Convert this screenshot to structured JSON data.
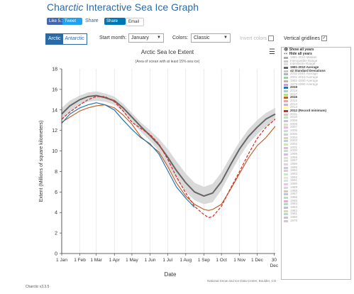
{
  "header": {
    "title_prefix": "Char",
    "title_em": "ctic",
    "title_rest": " Interactive Sea Ice Graph",
    "fb_label": "Like 5.1K",
    "tweet_label": "Tweet",
    "share_label": "Share",
    "li_share_label": "Share",
    "email_label": "Email"
  },
  "controls": {
    "tab_arctic": "Arctic",
    "tab_antarctic": "Antarctic",
    "start_month_label": "Start month",
    "start_month_value": "January",
    "colors_label": "Colors",
    "colors_value": "Classic",
    "invert_colors_label": "Invert colors",
    "vertical_gridlines_label": "Vertical gridlines",
    "vertical_gridlines_checked": "✓"
  },
  "legend": {
    "show_all": "Show all years",
    "hide_all": "Hide all years",
    "entries": [
      {
        "label": "1981-2010 Median",
        "color": "#aaaaaa",
        "light": true
      },
      {
        "label": "Interquartile Range",
        "color": "#cccccc",
        "light": true
      },
      {
        "label": "Interdecile Range",
        "color": "#dddddd",
        "light": true
      },
      {
        "label": "1981-2010 Average",
        "color": "#666666",
        "bold": true
      },
      {
        "label": "±2 Standard Deviations",
        "color": "#c8c8c8",
        "bold": true
      },
      {
        "label": "2011-2040 Average",
        "color": "#9fb9cf",
        "light": true
      },
      {
        "label": "2001-2010 Average",
        "color": "#9fcf9f",
        "light": true
      },
      {
        "label": "1991-2000 Average",
        "color": "#cfb09f",
        "light": true
      },
      {
        "label": "1979-1990 Average",
        "color": "#cf9fcf",
        "light": true
      },
      {
        "label": "2019",
        "color": "#1f78b4",
        "bold": true
      },
      {
        "label": "2018",
        "color": "#a6cee3",
        "light": true
      },
      {
        "label": "2017",
        "color": "#b2df8a",
        "light": true
      },
      {
        "label": "2016",
        "color": "#c0642b",
        "bold": true
      },
      {
        "label": "2015",
        "color": "#fb9a99",
        "light": true
      },
      {
        "label": "2014",
        "color": "#cab2d6",
        "light": true
      },
      {
        "label": "2013",
        "color": "#ffff99",
        "light": true
      },
      {
        "label": "2012 (Record minimum)",
        "color": "#d62728",
        "bold": true
      },
      {
        "label": "2011",
        "color": "#e0c0c0",
        "light": true
      },
      {
        "label": "2010",
        "color": "#c0e0c0",
        "light": true
      },
      {
        "label": "2009",
        "color": "#c0c0e0",
        "light": true
      },
      {
        "label": "2008",
        "color": "#e0e0c0",
        "light": true
      },
      {
        "label": "2007",
        "color": "#e0c0e0",
        "light": true
      },
      {
        "label": "2006",
        "color": "#c0e0e0",
        "light": true
      },
      {
        "label": "2005",
        "color": "#d0d0d0",
        "light": true
      },
      {
        "label": "2004",
        "color": "#e0d0c0",
        "light": true
      },
      {
        "label": "2003",
        "color": "#c0d0e0",
        "light": true
      },
      {
        "label": "2002",
        "color": "#d0e0c0",
        "light": true
      },
      {
        "label": "2001",
        "color": "#e0c0d0",
        "light": true
      },
      {
        "label": "2000",
        "color": "#c0e0d0",
        "light": true
      },
      {
        "label": "1999",
        "color": "#d0c0e0",
        "light": true
      },
      {
        "label": "1998",
        "color": "#e0e0d0",
        "light": true
      },
      {
        "label": "1997",
        "color": "#d0e0e0",
        "light": true
      },
      {
        "label": "1996",
        "color": "#e0d0e0",
        "light": true
      },
      {
        "label": "1995",
        "color": "#c8c8e8",
        "light": true
      },
      {
        "label": "1994",
        "color": "#e8c8c8",
        "light": true
      },
      {
        "label": "1993",
        "color": "#c8e8c8",
        "light": true
      },
      {
        "label": "1992",
        "color": "#e8e8c8",
        "light": true
      },
      {
        "label": "1991",
        "color": "#c8e8e8",
        "light": true
      },
      {
        "label": "1990",
        "color": "#e8c8e8",
        "light": true
      },
      {
        "label": "1989",
        "color": "#d8d8d8",
        "light": true
      },
      {
        "label": "1988",
        "color": "#d8c8b8",
        "light": true
      },
      {
        "label": "1987",
        "color": "#b8c8d8",
        "light": true
      },
      {
        "label": "1986",
        "color": "#c8d8b8",
        "light": true
      },
      {
        "label": "1985",
        "color": "#d8b8c8",
        "light": true
      },
      {
        "label": "1984",
        "color": "#b8d8c8",
        "light": true
      },
      {
        "label": "1983",
        "color": "#c8b8d8",
        "light": true
      },
      {
        "label": "1982",
        "color": "#d8d8b8",
        "light": true
      },
      {
        "label": "1981",
        "color": "#b8d8d8",
        "light": true
      },
      {
        "label": "1980",
        "color": "#d8b8d8",
        "light": true
      },
      {
        "label": "1979",
        "color": "#cccccc",
        "light": true
      }
    ]
  },
  "chart_data": {
    "type": "line",
    "title": "Arctic Sea Ice Extent",
    "subtitle": "(Area of ocean with at least 15% sea ice)",
    "xlabel": "Date",
    "ylabel": "Extent (Millions of square kilometers)",
    "xlim": [
      1,
      366
    ],
    "ylim": [
      0,
      18
    ],
    "yticks": [
      0,
      2,
      4,
      6,
      8,
      10,
      12,
      14,
      16,
      18
    ],
    "xticks": [
      {
        "label": "1 Jan",
        "day": 1
      },
      {
        "label": "1 Feb",
        "day": 32
      },
      {
        "label": "1 Mar",
        "day": 60
      },
      {
        "label": "1 Apr",
        "day": 91
      },
      {
        "label": "1 May",
        "day": 121
      },
      {
        "label": "1 Jun",
        "day": 152
      },
      {
        "label": "1 Jul",
        "day": 182
      },
      {
        "label": "1 Aug",
        "day": 213
      },
      {
        "label": "1 Sep",
        "day": 244
      },
      {
        "label": "1 Oct",
        "day": 274
      },
      {
        "label": "1 Nov",
        "day": 305
      },
      {
        "label": "1 Dec",
        "day": 335
      },
      {
        "label": "30 Dec",
        "day": 364
      }
    ],
    "grid": {
      "vertical": true,
      "horizontal": false
    },
    "band": {
      "name": "±2 Standard Deviations",
      "x": [
        1,
        15,
        32,
        46,
        60,
        75,
        91,
        106,
        121,
        136,
        152,
        167,
        182,
        197,
        213,
        228,
        244,
        259,
        274,
        289,
        305,
        320,
        335,
        350,
        366
      ],
      "low": [
        12.9,
        13.8,
        14.5,
        14.8,
        14.9,
        14.8,
        14.5,
        13.8,
        12.8,
        11.9,
        11.0,
        10.0,
        8.6,
        7.2,
        6.0,
        5.2,
        4.8,
        5.0,
        6.2,
        7.8,
        9.4,
        10.7,
        11.6,
        12.4,
        13.0
      ],
      "high": [
        14.2,
        14.9,
        15.4,
        15.7,
        15.8,
        15.6,
        15.3,
        14.6,
        13.7,
        12.8,
        12.0,
        11.2,
        10.2,
        9.0,
        7.8,
        6.9,
        6.5,
        6.8,
        7.9,
        9.4,
        10.9,
        12.1,
        13.0,
        13.7,
        14.2
      ]
    },
    "series": [
      {
        "name": "1981-2010 Average",
        "color": "#666666",
        "width": 2,
        "dash": "",
        "x": [
          1,
          15,
          32,
          46,
          60,
          75,
          91,
          106,
          121,
          136,
          152,
          167,
          182,
          197,
          213,
          228,
          244,
          259,
          274,
          289,
          305,
          320,
          335,
          350,
          366
        ],
        "y": [
          13.6,
          14.4,
          15.0,
          15.3,
          15.4,
          15.2,
          14.9,
          14.2,
          13.3,
          12.4,
          11.5,
          10.6,
          9.4,
          8.1,
          6.9,
          6.0,
          5.6,
          5.9,
          7.0,
          8.6,
          10.2,
          11.4,
          12.3,
          13.1,
          13.6
        ]
      },
      {
        "name": "2016",
        "color": "#c0642b",
        "width": 1.2,
        "dash": "",
        "x": [
          1,
          15,
          32,
          46,
          60,
          75,
          91,
          106,
          121,
          136,
          152,
          167,
          182,
          197,
          213,
          228,
          244,
          252,
          259,
          274,
          289,
          305,
          320,
          335,
          350,
          366
        ],
        "y": [
          12.8,
          13.3,
          13.9,
          14.2,
          14.4,
          14.5,
          14.2,
          13.5,
          12.6,
          11.4,
          10.6,
          9.9,
          8.5,
          6.9,
          5.6,
          4.8,
          4.3,
          4.2,
          4.3,
          4.8,
          6.2,
          7.8,
          9.3,
          10.5,
          11.3,
          12.4
        ]
      },
      {
        "name": "2012 (Record minimum)",
        "color": "#d62728",
        "width": 1.2,
        "dash": "4,2",
        "x": [
          1,
          15,
          32,
          46,
          60,
          75,
          91,
          106,
          121,
          136,
          152,
          167,
          182,
          197,
          213,
          228,
          244,
          252,
          259,
          274,
          289,
          305,
          320,
          335,
          350,
          366
        ],
        "y": [
          13.1,
          13.8,
          14.5,
          15.0,
          15.3,
          15.3,
          14.8,
          13.9,
          12.8,
          12.2,
          11.6,
          10.7,
          9.2,
          7.5,
          5.9,
          4.6,
          3.8,
          3.5,
          3.6,
          4.6,
          6.3,
          8.0,
          9.7,
          11.2,
          12.3,
          13.1
        ]
      },
      {
        "name": "2019",
        "color": "#1f78b4",
        "width": 1.2,
        "dash": "",
        "x": [
          1,
          15,
          32,
          46,
          60,
          75,
          91,
          106,
          121,
          136,
          152,
          167,
          182,
          197,
          213,
          228
        ],
        "y": [
          12.7,
          13.6,
          14.2,
          14.5,
          14.7,
          14.5,
          14.0,
          13.0,
          12.1,
          11.3,
          10.7,
          9.7,
          8.1,
          6.5,
          5.4,
          4.5
        ]
      }
    ]
  },
  "footer": {
    "version": "Charctic v3.3.5",
    "credit": "National Snow and Ice Data Center, Boulder, CO"
  }
}
